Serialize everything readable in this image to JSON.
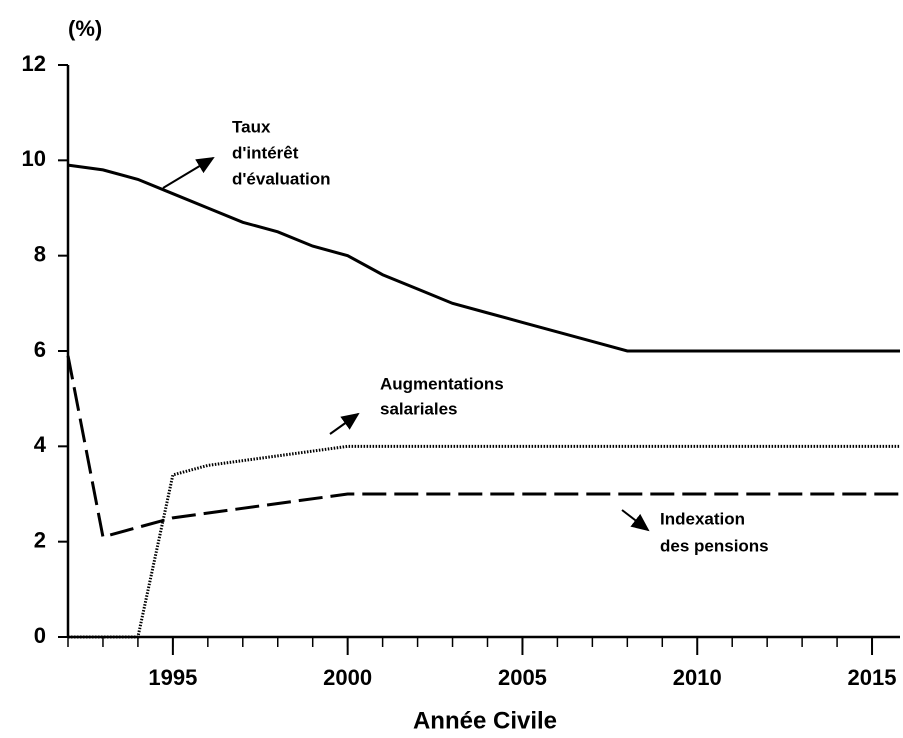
{
  "chart_data": {
    "type": "line",
    "ylabel": "(%)",
    "xlabel": "Année Civile",
    "xlim": [
      1992,
      2015.8
    ],
    "ylim": [
      0,
      12
    ],
    "xticks": [
      1995,
      2000,
      2005,
      2010,
      2015
    ],
    "xminor_ticks": [
      1992,
      1993,
      1994,
      1995,
      1996,
      1997,
      1998,
      1999,
      2000,
      2001,
      2002,
      2003,
      2004,
      2005,
      2006,
      2007,
      2008,
      2009,
      2010,
      2011,
      2012,
      2013,
      2014,
      2015
    ],
    "yticks": [
      0,
      2,
      4,
      6,
      8,
      10,
      12
    ],
    "series": [
      {
        "label": [
          "Taux",
          "d'intérêt",
          "d'évaluation"
        ],
        "color": "#000000",
        "style": "solid",
        "x": [
          1992,
          1993,
          1994,
          1995,
          1996,
          1997,
          1998,
          1999,
          2000,
          2001,
          2002,
          2003,
          2004,
          2005,
          2006,
          2007,
          2008,
          2015.8
        ],
        "values": [
          9.9,
          9.8,
          9.6,
          9.3,
          9.0,
          8.7,
          8.5,
          8.2,
          8.0,
          7.6,
          7.3,
          7.0,
          6.8,
          6.6,
          6.4,
          6.2,
          6.0,
          6.0
        ]
      },
      {
        "label": [
          "Augmentations",
          "salariales"
        ],
        "color": "#000000",
        "style": "dotted",
        "x": [
          1992,
          1994,
          1995,
          1996,
          1997,
          1998,
          1999,
          2000,
          2015.8
        ],
        "values": [
          0,
          0,
          3.4,
          3.6,
          3.7,
          3.8,
          3.9,
          4.0,
          4.0
        ]
      },
      {
        "label": [
          "Indexation",
          "des pensions"
        ],
        "color": "#000000",
        "style": "dashed",
        "x": [
          1992,
          1993,
          1995,
          2000,
          2015.8
        ],
        "values": [
          5.9,
          2.1,
          2.5,
          3.0,
          3.0
        ]
      }
    ]
  }
}
